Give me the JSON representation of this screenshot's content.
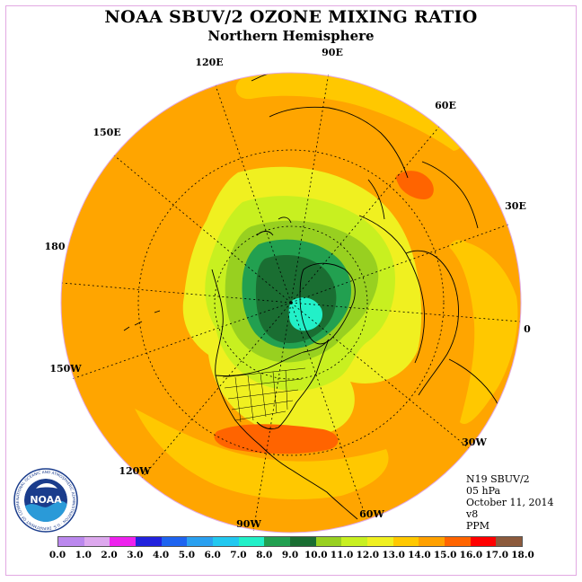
{
  "title": "NOAA SBUV/2 OZONE MIXING RATIO",
  "subtitle": "Northern Hemisphere",
  "longitude_labels": [
    {
      "text": "90E",
      "lon": 90
    },
    {
      "text": "60E",
      "lon": 60
    },
    {
      "text": "30E",
      "lon": 30
    },
    {
      "text": "0",
      "lon": 0
    },
    {
      "text": "30W",
      "lon": -30
    },
    {
      "text": "60W",
      "lon": -60
    },
    {
      "text": "90W",
      "lon": -90
    },
    {
      "text": "120W",
      "lon": -120
    },
    {
      "text": "150W",
      "lon": -150
    },
    {
      "text": "180",
      "lon": 180
    },
    {
      "text": "150E",
      "lon": 150
    },
    {
      "text": "120E",
      "lon": 120
    }
  ],
  "info": {
    "satellite": "N19 SBUV/2",
    "level": "05 hPa",
    "date": "October 11, 2014",
    "version": "v8",
    "units": "PPM"
  },
  "colorbar": {
    "ticks": [
      "0.0",
      "1.0",
      "2.0",
      "3.0",
      "4.0",
      "5.0",
      "6.0",
      "7.0",
      "8.0",
      "9.0",
      "10.0",
      "11.0",
      "12.0",
      "13.0",
      "14.0",
      "15.0",
      "16.0",
      "17.0",
      "18.0"
    ],
    "colors": [
      "#bb88ee",
      "#dda8ee",
      "#ee22ee",
      "#2222dd",
      "#1e64f0",
      "#2aa0f0",
      "#22c8f0",
      "#22f0c8",
      "#22a050",
      "#1a6e32",
      "#98d020",
      "#c8f020",
      "#f0f020",
      "#ffc800",
      "#ffa000",
      "#ff6400",
      "#ff0000",
      "#8c5a3c"
    ]
  },
  "logo": {
    "text": "NOAA",
    "ring_text": "NATIONAL OCEANIC AND ATMOSPHERIC ADMINISTRATION · U.S. DEPARTMENT OF COMMERCE"
  },
  "field_colors": {
    "background": "#ffa500",
    "band_14": "#ffc800",
    "band_13": "#f0f020",
    "band_12": "#c8f020",
    "band_11": "#98d020",
    "band_10": "#22a050",
    "band_9": "#1a6e32",
    "band_7": "#22f0c8",
    "band_16": "#ff6400"
  }
}
